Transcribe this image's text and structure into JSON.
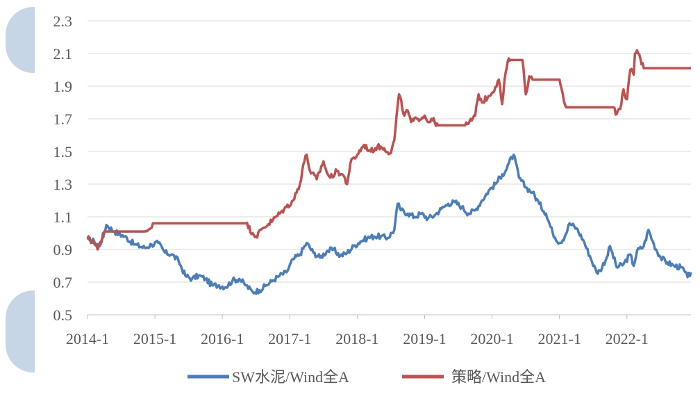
{
  "chart_data": {
    "type": "line",
    "title": "",
    "xlabel": "",
    "ylabel": "",
    "ylim": [
      0.5,
      2.3
    ],
    "yticks": [
      "0.5",
      "0.7",
      "0.9",
      "1.1",
      "1.3",
      "1.5",
      "1.7",
      "1.9",
      "2.1",
      "2.3"
    ],
    "xlim": [
      2014.0,
      2022.95
    ],
    "xtick_labels": [
      "2014-1",
      "2015-1",
      "2016-1",
      "2017-1",
      "2018-1",
      "2019-1",
      "2020-1",
      "2021-1",
      "2022-1"
    ],
    "grid": "horizontal",
    "legend_position": "bottom",
    "series": [
      {
        "name": "SW水泥/Wind全A",
        "color": "#4a7ebb",
        "x": [
          2014.0,
          2014.1,
          2014.18,
          2014.28,
          2014.4,
          2014.55,
          2014.7,
          2014.85,
          2014.95,
          2015.05,
          2015.15,
          2015.25,
          2015.35,
          2015.45,
          2015.55,
          2015.65,
          2015.75,
          2015.85,
          2015.95,
          2016.05,
          2016.15,
          2016.25,
          2016.35,
          2016.45,
          2016.55,
          2016.65,
          2016.75,
          2016.85,
          2016.95,
          2017.05,
          2017.15,
          2017.25,
          2017.35,
          2017.45,
          2017.55,
          2017.65,
          2017.75,
          2017.85,
          2017.95,
          2018.05,
          2018.15,
          2018.25,
          2018.35,
          2018.45,
          2018.55,
          2018.6,
          2018.65,
          2018.75,
          2018.85,
          2018.95,
          2019.05,
          2019.15,
          2019.25,
          2019.35,
          2019.45,
          2019.55,
          2019.65,
          2019.75,
          2019.85,
          2019.95,
          2020.05,
          2020.15,
          2020.2,
          2020.25,
          2020.32,
          2020.4,
          2020.5,
          2020.6,
          2020.7,
          2020.8,
          2020.9,
          2021.0,
          2021.08,
          2021.15,
          2021.25,
          2021.35,
          2021.45,
          2021.55,
          2021.6,
          2021.7,
          2021.75,
          2021.85,
          2021.95,
          2022.05,
          2022.1,
          2022.15,
          2022.25,
          2022.32,
          2022.4,
          2022.5,
          2022.6,
          2022.7,
          2022.8,
          2022.85,
          2022.9,
          2022.95
        ],
        "values": [
          0.96,
          0.95,
          0.92,
          1.05,
          1.01,
          0.98,
          0.93,
          0.91,
          0.93,
          0.94,
          0.88,
          0.87,
          0.83,
          0.74,
          0.72,
          0.74,
          0.72,
          0.68,
          0.68,
          0.67,
          0.71,
          0.72,
          0.68,
          0.64,
          0.65,
          0.68,
          0.71,
          0.74,
          0.76,
          0.84,
          0.87,
          0.94,
          0.88,
          0.85,
          0.89,
          0.9,
          0.86,
          0.88,
          0.92,
          0.95,
          0.97,
          0.98,
          0.98,
          0.97,
          1.02,
          1.18,
          1.14,
          1.12,
          1.1,
          1.12,
          1.09,
          1.11,
          1.15,
          1.18,
          1.19,
          1.16,
          1.12,
          1.14,
          1.2,
          1.26,
          1.3,
          1.36,
          1.38,
          1.43,
          1.48,
          1.34,
          1.28,
          1.25,
          1.18,
          1.12,
          1.0,
          0.94,
          0.98,
          1.06,
          1.03,
          0.96,
          0.86,
          0.76,
          0.77,
          0.85,
          0.92,
          0.79,
          0.81,
          0.87,
          0.8,
          0.89,
          0.92,
          1.02,
          0.93,
          0.85,
          0.82,
          0.8,
          0.79,
          0.77,
          0.73,
          0.76
        ]
      },
      {
        "name": "策略/Wind全A",
        "color": "#c0504d",
        "x": [
          2014.0,
          2014.08,
          2014.15,
          2014.22,
          2014.25,
          2014.5,
          2014.85,
          2014.9,
          2014.97,
          2015.0,
          2016.0,
          2016.35,
          2016.45,
          2016.5,
          2016.6,
          2016.75,
          2016.85,
          2016.95,
          2017.05,
          2017.15,
          2017.2,
          2017.25,
          2017.3,
          2017.4,
          2017.5,
          2017.55,
          2017.6,
          2017.7,
          2017.8,
          2017.85,
          2017.9,
          2018.0,
          2018.1,
          2018.2,
          2018.3,
          2018.4,
          2018.5,
          2018.55,
          2018.6,
          2018.62,
          2018.7,
          2018.75,
          2018.8,
          2018.9,
          2019.0,
          2019.05,
          2019.1,
          2019.2,
          2019.6,
          2019.65,
          2019.75,
          2019.8,
          2019.85,
          2019.95,
          2020.0,
          2020.1,
          2020.15,
          2020.2,
          2020.25,
          2020.27,
          2020.45,
          2020.5,
          2020.55,
          2020.6,
          2021.0,
          2021.05,
          2021.1,
          2021.2,
          2021.8,
          2021.85,
          2021.9,
          2021.95,
          2022.0,
          2022.05,
          2022.1,
          2022.12,
          2022.15,
          2022.25,
          2022.95
        ],
        "values": [
          0.97,
          0.95,
          0.9,
          0.97,
          1.01,
          1.01,
          1.01,
          1.02,
          1.06,
          1.06,
          1.06,
          1.06,
          1.0,
          0.98,
          1.03,
          1.08,
          1.12,
          1.16,
          1.2,
          1.3,
          1.42,
          1.48,
          1.38,
          1.33,
          1.44,
          1.37,
          1.34,
          1.38,
          1.35,
          1.3,
          1.43,
          1.48,
          1.54,
          1.5,
          1.53,
          1.52,
          1.49,
          1.57,
          1.78,
          1.85,
          1.72,
          1.75,
          1.68,
          1.7,
          1.72,
          1.68,
          1.7,
          1.66,
          1.66,
          1.67,
          1.72,
          1.85,
          1.8,
          1.84,
          1.86,
          1.94,
          1.79,
          1.98,
          2.07,
          2.06,
          2.06,
          1.85,
          1.96,
          1.94,
          1.94,
          1.85,
          1.77,
          1.77,
          1.77,
          1.73,
          1.76,
          1.88,
          1.82,
          2.0,
          1.97,
          2.1,
          2.12,
          2.01,
          2.01
        ]
      }
    ]
  }
}
